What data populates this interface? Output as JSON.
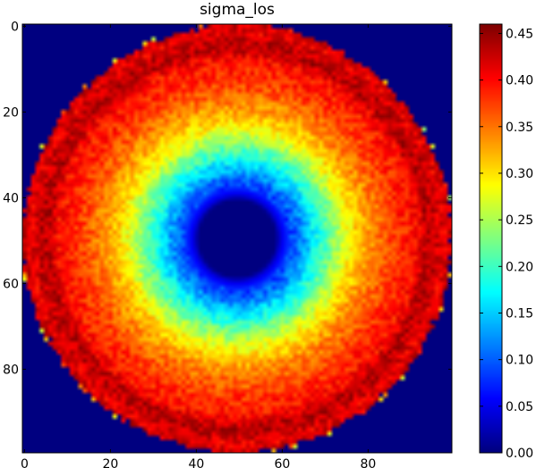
{
  "chart_data": {
    "type": "heatmap",
    "title": "sigma_los",
    "xlabel": "",
    "ylabel": "",
    "grid": false,
    "colormap": "jet",
    "image_shape": [
      100,
      100
    ],
    "xlim": [
      -0.5,
      99.5
    ],
    "ylim": [
      99.5,
      -0.5
    ],
    "x_ticks": [
      0,
      20,
      40,
      60,
      80
    ],
    "y_ticks": [
      0,
      20,
      40,
      60,
      80
    ],
    "x_tick_labels": [
      "0",
      "20",
      "40",
      "60",
      "80"
    ],
    "y_tick_labels": [
      "0",
      "20",
      "40",
      "60",
      "80"
    ],
    "value_range": [
      0.0,
      0.46
    ],
    "colorbar_ticks": [
      0.0,
      0.05,
      0.1,
      0.15,
      0.2,
      0.25,
      0.3,
      0.35,
      0.4,
      0.45
    ],
    "colorbar_tick_labels": [
      "0.00",
      "0.05",
      "0.10",
      "0.15",
      "0.20",
      "0.25",
      "0.30",
      "0.35",
      "0.40",
      "0.45"
    ],
    "center": [
      49.5,
      49.5
    ],
    "radial_profile": {
      "radius": [
        0,
        9,
        10,
        12,
        15,
        18,
        22,
        26,
        30,
        34,
        38,
        40,
        42,
        44,
        46,
        48,
        50,
        51
      ],
      "value": [
        0.0,
        0.0,
        0.04,
        0.08,
        0.12,
        0.17,
        0.23,
        0.29,
        0.33,
        0.36,
        0.385,
        0.39,
        0.4,
        0.435,
        0.43,
        0.41,
        0.43,
        0.0
      ]
    }
  },
  "colors": {
    "background": "#ffffff",
    "axes_edge": "#000000",
    "outside_value_color": "#00007f"
  }
}
